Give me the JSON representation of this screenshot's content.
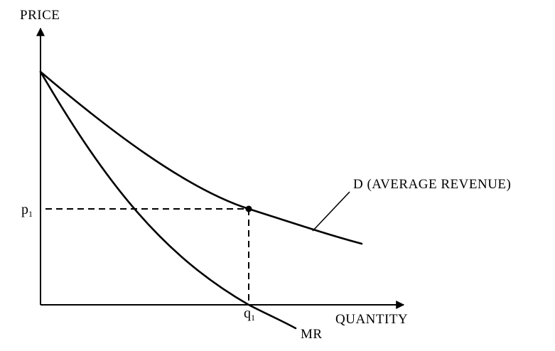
{
  "y_axis_label": "PRICE",
  "x_axis_label": "QUANTITY",
  "demand_label": "D (AVERAGE REVENUE)",
  "mr_label": "MR",
  "price_tick": {
    "base": "p",
    "sub": "1"
  },
  "quantity_tick": {
    "base": "q",
    "sub": "1"
  },
  "colors": {
    "ink": "#000000",
    "background": "#ffffff"
  }
}
